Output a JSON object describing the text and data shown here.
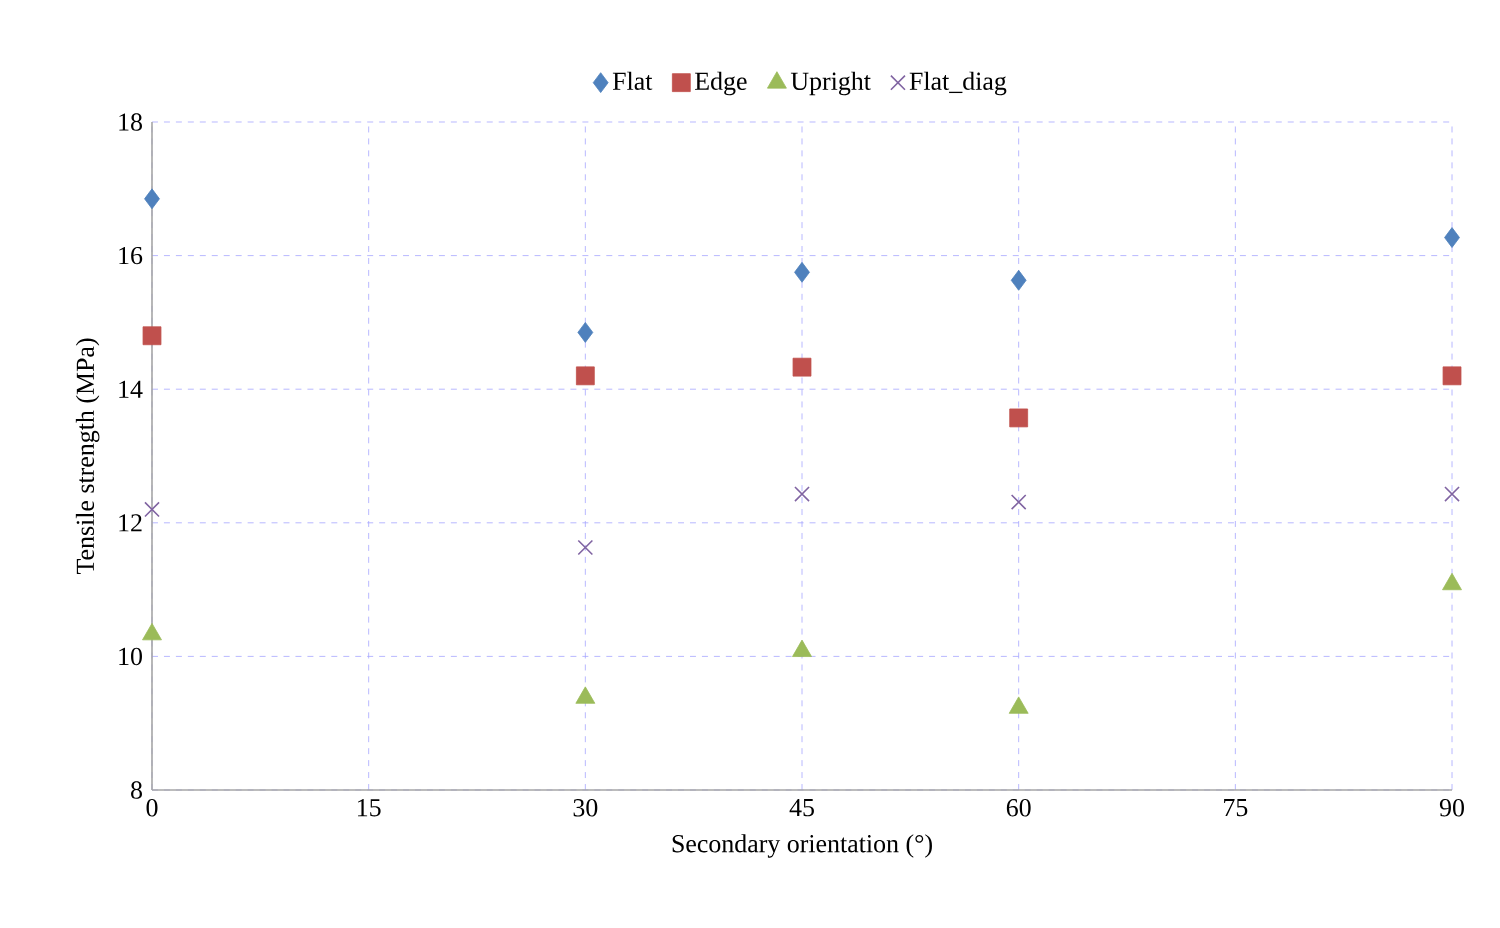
{
  "chart_data": {
    "type": "scatter",
    "xlabel": "Secondary orientation (°)",
    "ylabel": "Tensile strength (MPa)",
    "x": [
      0,
      30,
      45,
      60,
      90
    ],
    "series": [
      {
        "name": "Flat",
        "color": "#4f81bd",
        "marker": "diamond",
        "values": [
          16.85,
          14.85,
          15.75,
          15.63,
          16.27
        ]
      },
      {
        "name": "Edge",
        "color": "#c0504d",
        "marker": "square",
        "values": [
          14.8,
          14.2,
          14.33,
          13.57,
          14.2
        ]
      },
      {
        "name": "Upright",
        "color": "#9bbb59",
        "marker": "triangle",
        "values": [
          10.33,
          9.38,
          10.08,
          9.23,
          11.08
        ]
      },
      {
        "name": "Flat_diag",
        "color": "#8064a2",
        "marker": "cross",
        "values": [
          12.2,
          11.63,
          12.43,
          12.31,
          12.43
        ]
      }
    ],
    "xlim": [
      0,
      90
    ],
    "xticks": [
      0,
      15,
      30,
      45,
      60,
      75,
      90
    ],
    "ylim": [
      8,
      18
    ],
    "yticks": [
      8,
      10,
      12,
      14,
      16,
      18
    ],
    "grid": true,
    "legend": "top"
  }
}
